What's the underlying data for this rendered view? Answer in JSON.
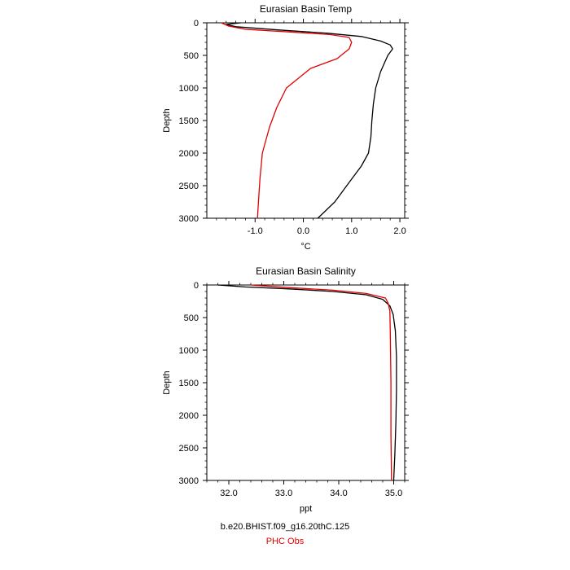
{
  "chart_data": [
    {
      "type": "line",
      "title": "Eurasian Basin Temp",
      "xlabel": "°C",
      "ylabel": "Depth",
      "xlim": [
        -2.0,
        2.1
      ],
      "ylim": [
        3000,
        0
      ],
      "y_inverted": true,
      "xticks": [
        -1.0,
        0.0,
        1.0,
        2.0
      ],
      "xtick_labels": [
        "-1.0",
        "0.0",
        "1.0",
        "2.0"
      ],
      "yticks": [
        0,
        500,
        1000,
        1500,
        2000,
        2500,
        3000
      ],
      "ytick_labels": [
        "0",
        "500",
        "1000",
        "1500",
        "2000",
        "2500",
        "3000"
      ],
      "series": [
        {
          "name": "b.e20.BHIST.f09_g16.20thC.125",
          "color": "#000000",
          "x": [
            -1.3,
            -1.6,
            -1.4,
            -0.5,
            0.5,
            1.2,
            1.6,
            1.8,
            1.85,
            1.75,
            1.6,
            1.5,
            1.45,
            1.42,
            1.4,
            1.35,
            1.2,
            0.95,
            0.65,
            0.3
          ],
          "y": [
            0,
            25,
            60,
            110,
            160,
            210,
            280,
            340,
            400,
            500,
            750,
            1000,
            1250,
            1500,
            1750,
            2000,
            2200,
            2450,
            2750,
            3000
          ]
        },
        {
          "name": "PHC Obs",
          "color": "#e00000",
          "x": [
            -1.7,
            -1.55,
            -1.2,
            -0.3,
            0.55,
            0.95,
            1.0,
            0.95,
            0.7,
            0.15,
            -0.35,
            -0.55,
            -0.7,
            -0.85,
            -0.9,
            -0.93,
            -0.95
          ],
          "y": [
            0,
            50,
            100,
            140,
            180,
            225,
            300,
            400,
            550,
            700,
            1000,
            1300,
            1600,
            2000,
            2400,
            2750,
            3000
          ]
        }
      ]
    },
    {
      "type": "line",
      "title": "Eurasian Basin Salinity",
      "xlabel": "ppt",
      "ylabel": "Depth",
      "xlim": [
        31.6,
        35.2
      ],
      "ylim": [
        3000,
        0
      ],
      "y_inverted": true,
      "xticks": [
        32.0,
        33.0,
        34.0,
        35.0
      ],
      "xtick_labels": [
        "32.0",
        "33.0",
        "34.0",
        "35.0"
      ],
      "yticks": [
        0,
        500,
        1000,
        1500,
        2000,
        2500,
        3000
      ],
      "ytick_labels": [
        "0",
        "500",
        "1000",
        "1500",
        "2000",
        "2500",
        "3000"
      ],
      "series": [
        {
          "name": "b.e20.BHIST.f09_g16.20thC.125",
          "color": "#000000",
          "x": [
            31.8,
            32.3,
            33.1,
            33.9,
            34.5,
            34.8,
            34.93,
            34.99,
            35.03,
            35.05,
            35.05,
            35.04,
            35.02,
            35.0
          ],
          "y": [
            0,
            30,
            60,
            100,
            150,
            220,
            320,
            450,
            700,
            1100,
            1600,
            2100,
            2600,
            3000
          ]
        },
        {
          "name": "PHC Obs",
          "color": "#e00000",
          "x": [
            32.4,
            33.1,
            33.9,
            34.5,
            34.85,
            34.9,
            34.93,
            34.94,
            34.95,
            34.95,
            34.96
          ],
          "y": [
            0,
            40,
            80,
            130,
            200,
            280,
            400,
            800,
            1500,
            2300,
            3000
          ]
        }
      ]
    }
  ],
  "legend": {
    "model_label": "b.e20.BHIST.f09_g16.20thC.125",
    "obs_label": "PHC Obs",
    "model_color": "#000000",
    "obs_color": "#e00000"
  }
}
